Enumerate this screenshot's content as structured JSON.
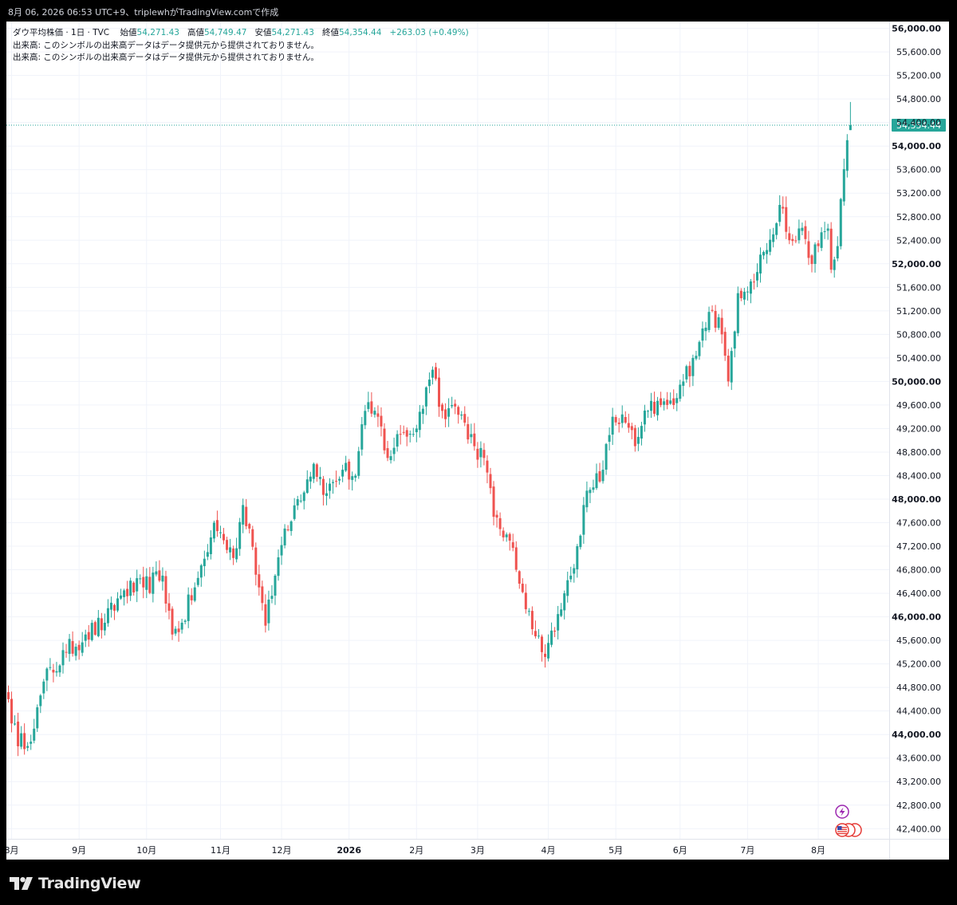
{
  "caption": "8月 06, 2026 06:53 UTC+9、triplewhがTradingView.comで作成",
  "legend": {
    "symbol": "ダウ平均株価 · 1日 · TVC",
    "open_label": "始値",
    "open": "54,271.43",
    "high_label": "高値",
    "high": "54,749.47",
    "low_label": "安値",
    "low": "54,271.43",
    "close_label": "終値",
    "close": "54,354.44",
    "change": "+263.03 (+0.49%)",
    "volume_line_1": "出来高: このシンボルの出来高データはデータ提供元から提供されておりません。",
    "volume_line_2": "出来高: このシンボルの出来高データはデータ提供元から提供されておりません。"
  },
  "last_price_label": "54,354.44",
  "brand": "TradingView",
  "icons": {
    "flash": "flash-event-icon",
    "flag": "us-flag-event-icon",
    "logo": "tradingview-logo-icon"
  },
  "colors": {
    "up": "#26a69a",
    "down": "#ef5350",
    "grid": "#f0f3fa",
    "last_line": "#26a69a"
  },
  "chart_data": {
    "type": "candlestick",
    "title": "ダウ平均株価 · 1日 · TVC",
    "y_scale": "linear",
    "ylim": [
      42100,
      56250
    ],
    "y_ticks": [
      {
        "value": 42400,
        "label": "42,400.00",
        "bold": false
      },
      {
        "value": 42800,
        "label": "42,800.00",
        "bold": false
      },
      {
        "value": 43200,
        "label": "43,200.00",
        "bold": false
      },
      {
        "value": 43600,
        "label": "43,600.00",
        "bold": false
      },
      {
        "value": 44000,
        "label": "44,000.00",
        "bold": true
      },
      {
        "value": 44400,
        "label": "44,400.00",
        "bold": false
      },
      {
        "value": 44800,
        "label": "44,800.00",
        "bold": false
      },
      {
        "value": 45200,
        "label": "45,200.00",
        "bold": false
      },
      {
        "value": 45600,
        "label": "45,600.00",
        "bold": false
      },
      {
        "value": 46000,
        "label": "46,000.00",
        "bold": true
      },
      {
        "value": 46400,
        "label": "46,400.00",
        "bold": false
      },
      {
        "value": 46800,
        "label": "46,800.00",
        "bold": false
      },
      {
        "value": 47200,
        "label": "47,200.00",
        "bold": false
      },
      {
        "value": 47600,
        "label": "47,600.00",
        "bold": false
      },
      {
        "value": 48000,
        "label": "48,000.00",
        "bold": true
      },
      {
        "value": 48400,
        "label": "48,400.00",
        "bold": false
      },
      {
        "value": 48800,
        "label": "48,800.00",
        "bold": false
      },
      {
        "value": 49200,
        "label": "49,200.00",
        "bold": false
      },
      {
        "value": 49600,
        "label": "49,600.00",
        "bold": false
      },
      {
        "value": 50000,
        "label": "50,000.00",
        "bold": true
      },
      {
        "value": 50400,
        "label": "50,400.00",
        "bold": false
      },
      {
        "value": 50800,
        "label": "50,800.00",
        "bold": false
      },
      {
        "value": 51200,
        "label": "51,200.00",
        "bold": false
      },
      {
        "value": 51600,
        "label": "51,600.00",
        "bold": false
      },
      {
        "value": 52000,
        "label": "52,000.00",
        "bold": true
      },
      {
        "value": 52400,
        "label": "52,400.00",
        "bold": false
      },
      {
        "value": 52800,
        "label": "52,800.00",
        "bold": false
      },
      {
        "value": 53200,
        "label": "53,200.00",
        "bold": false
      },
      {
        "value": 53600,
        "label": "53,600.00",
        "bold": false
      },
      {
        "value": 54000,
        "label": "54,000.00",
        "bold": true
      },
      {
        "value": 54400,
        "label": "54,400.00",
        "bold": false
      },
      {
        "value": 54800,
        "label": "54,800.00",
        "bold": false
      },
      {
        "value": 55200,
        "label": "55,200.00",
        "bold": false
      },
      {
        "value": 55600,
        "label": "55,600.00",
        "bold": false
      },
      {
        "value": 56000,
        "label": "56,000.00",
        "bold": true
      }
    ],
    "x_ticks": [
      {
        "label": "8月",
        "bar": 1,
        "bold": false
      },
      {
        "label": "9月",
        "bar": 22,
        "bold": false
      },
      {
        "label": "10月",
        "bar": 43,
        "bold": false
      },
      {
        "label": "11月",
        "bar": 66,
        "bold": false
      },
      {
        "label": "12月",
        "bar": 85,
        "bold": false
      },
      {
        "label": "2026",
        "bar": 106,
        "bold": true
      },
      {
        "label": "2月",
        "bar": 127,
        "bold": false
      },
      {
        "label": "3月",
        "bar": 146,
        "bold": false
      },
      {
        "label": "4月",
        "bar": 168,
        "bold": false
      },
      {
        "label": "5月",
        "bar": 189,
        "bold": false
      },
      {
        "label": "6月",
        "bar": 209,
        "bold": false
      },
      {
        "label": "7月",
        "bar": 230,
        "bold": false
      },
      {
        "label": "8月",
        "bar": 252,
        "bold": false
      }
    ],
    "last_price": 54354.44,
    "close_path": [
      {
        "bar": 0,
        "close": 44600
      },
      {
        "bar": 3,
        "close": 43800
      },
      {
        "bar": 8,
        "close": 44100
      },
      {
        "bar": 11,
        "close": 44900
      },
      {
        "bar": 18,
        "close": 45400
      },
      {
        "bar": 24,
        "close": 45700
      },
      {
        "bar": 30,
        "close": 45900
      },
      {
        "bar": 36,
        "close": 46450
      },
      {
        "bar": 42,
        "close": 46500
      },
      {
        "bar": 48,
        "close": 46700
      },
      {
        "bar": 51,
        "close": 45700
      },
      {
        "bar": 54,
        "close": 45900
      },
      {
        "bar": 58,
        "close": 46500
      },
      {
        "bar": 62,
        "close": 47100
      },
      {
        "bar": 64,
        "close": 47600
      },
      {
        "bar": 67,
        "close": 47300
      },
      {
        "bar": 70,
        "close": 47000
      },
      {
        "bar": 73,
        "close": 47900
      },
      {
        "bar": 75,
        "close": 47500
      },
      {
        "bar": 78,
        "close": 46500
      },
      {
        "bar": 80,
        "close": 45850
      },
      {
        "bar": 83,
        "close": 46700
      },
      {
        "bar": 86,
        "close": 47500
      },
      {
        "bar": 90,
        "close": 48000
      },
      {
        "bar": 95,
        "close": 48600
      },
      {
        "bar": 99,
        "close": 48100
      },
      {
        "bar": 104,
        "close": 48500
      },
      {
        "bar": 108,
        "close": 48400
      },
      {
        "bar": 111,
        "close": 49500
      },
      {
        "bar": 115,
        "close": 49400
      },
      {
        "bar": 118,
        "close": 48700
      },
      {
        "bar": 122,
        "close": 49100
      },
      {
        "bar": 127,
        "close": 49200
      },
      {
        "bar": 130,
        "close": 49900
      },
      {
        "bar": 132,
        "close": 50200
      },
      {
        "bar": 135,
        "close": 49500
      },
      {
        "bar": 138,
        "close": 49600
      },
      {
        "bar": 142,
        "close": 49300
      },
      {
        "bar": 145,
        "close": 48900
      },
      {
        "bar": 148,
        "close": 48700
      },
      {
        "bar": 151,
        "close": 47700
      },
      {
        "bar": 155,
        "close": 47400
      },
      {
        "bar": 158,
        "close": 46800
      },
      {
        "bar": 162,
        "close": 46100
      },
      {
        "bar": 166,
        "close": 45400
      },
      {
        "bar": 170,
        "close": 45750
      },
      {
        "bar": 173,
        "close": 46400
      },
      {
        "bar": 175,
        "close": 46700
      },
      {
        "bar": 177,
        "close": 47200
      },
      {
        "bar": 179,
        "close": 47900
      },
      {
        "bar": 182,
        "close": 48200
      },
      {
        "bar": 185,
        "close": 48500
      },
      {
        "bar": 188,
        "close": 49400
      },
      {
        "bar": 192,
        "close": 49300
      },
      {
        "bar": 195,
        "close": 48900
      },
      {
        "bar": 199,
        "close": 49500
      },
      {
        "bar": 203,
        "close": 49600
      },
      {
        "bar": 207,
        "close": 49600
      },
      {
        "bar": 210,
        "close": 50000
      },
      {
        "bar": 213,
        "close": 50400
      },
      {
        "bar": 216,
        "close": 50900
      },
      {
        "bar": 219,
        "close": 51200
      },
      {
        "bar": 222,
        "close": 50800
      },
      {
        "bar": 224,
        "close": 50000
      },
      {
        "bar": 227,
        "close": 51500
      },
      {
        "bar": 231,
        "close": 51700
      },
      {
        "bar": 235,
        "close": 52200
      },
      {
        "bar": 238,
        "close": 52500
      },
      {
        "bar": 240,
        "close": 53000
      },
      {
        "bar": 243,
        "close": 52400
      },
      {
        "bar": 246,
        "close": 52600
      },
      {
        "bar": 249,
        "close": 52100
      },
      {
        "bar": 252,
        "close": 52300
      },
      {
        "bar": 255,
        "close": 52600
      },
      {
        "bar": 256,
        "close": 51900
      },
      {
        "bar": 258,
        "close": 52300
      },
      {
        "bar": 259,
        "close": 53100
      },
      {
        "bar": 261,
        "close": 54100
      },
      {
        "bar": 262,
        "close": 54354.44
      }
    ],
    "latest_candle": {
      "open": 54271.43,
      "high": 54749.47,
      "low": 54271.43,
      "close": 54354.44
    }
  }
}
